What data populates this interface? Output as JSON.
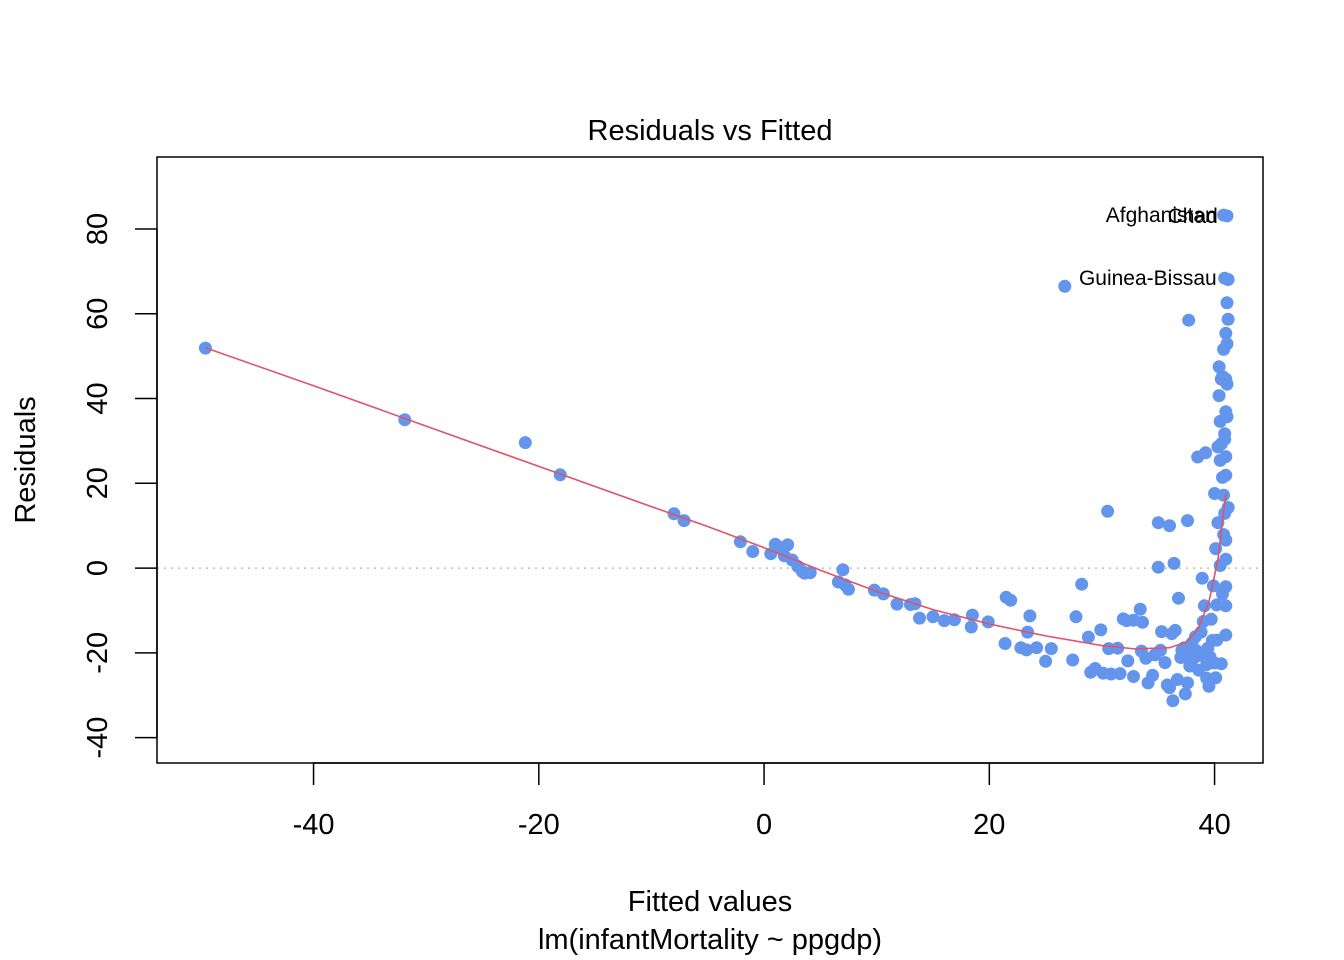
{
  "chart_data": {
    "type": "scatter",
    "title": "Residuals vs Fitted",
    "xlabel": "Fitted values",
    "subtitle": "lm(infantMortality ~ ppgdp)",
    "ylabel": "Residuals",
    "xlim": [
      -53.9,
      44.3
    ],
    "ylim": [
      -46.0,
      97.0
    ],
    "xticks": [
      -40,
      -20,
      0,
      20,
      40
    ],
    "yticks": [
      -40,
      -20,
      0,
      20,
      40,
      60,
      80
    ],
    "xtick_labels": [
      "-40",
      "-20",
      "0",
      "20",
      "40"
    ],
    "ytick_labels": [
      "-40",
      "-20",
      "0",
      "20",
      "40",
      "60",
      "80"
    ],
    "grid": false,
    "reference_line_y": 0,
    "colors": {
      "points": "#6495ED",
      "smooth": "#DF536B",
      "refline": "#BEBEBE",
      "axes": "#000000"
    },
    "annotations": [
      {
        "text": "Afghanistan",
        "x": 40.9,
        "y": 83.3
      },
      {
        "text": "Chad",
        "x": 41.0,
        "y": 83.1
      },
      {
        "text": "Guinea-Bissau",
        "x": 40.9,
        "y": 68.4
      }
    ],
    "smooth": [
      [
        -49.6,
        52.0
      ],
      [
        -40,
        43.0
      ],
      [
        -30,
        33.5
      ],
      [
        -20,
        24.0
      ],
      [
        -10,
        14.5
      ],
      [
        -5,
        9.8
      ],
      [
        0,
        4.8
      ],
      [
        5,
        -0.5
      ],
      [
        10,
        -5.5
      ],
      [
        15,
        -9.8
      ],
      [
        20,
        -13.2
      ],
      [
        25,
        -16.0
      ],
      [
        30,
        -18.3
      ],
      [
        33,
        -19.1
      ],
      [
        36,
        -18.8
      ],
      [
        37.5,
        -17.5
      ],
      [
        38.5,
        -14.5
      ],
      [
        39.5,
        -8.0
      ],
      [
        40.3,
        2.0
      ],
      [
        41.0,
        17.5
      ]
    ],
    "points": [
      [
        -49.6,
        51.9
      ],
      [
        -31.9,
        35.0
      ],
      [
        -21.2,
        29.6
      ],
      [
        -18.1,
        22.0
      ],
      [
        -8.0,
        12.8
      ],
      [
        -7.1,
        11.2
      ],
      [
        -2.1,
        6.2
      ],
      [
        -1.0,
        3.9
      ],
      [
        0.6,
        3.4
      ],
      [
        1.0,
        5.6
      ],
      [
        1.4,
        4.9
      ],
      [
        2.1,
        5.5
      ],
      [
        1.8,
        2.9
      ],
      [
        2.5,
        1.9
      ],
      [
        3.0,
        0.4
      ],
      [
        3.4,
        -0.8
      ],
      [
        3.6,
        -1.2
      ],
      [
        4.1,
        -1.1
      ],
      [
        6.6,
        -3.3
      ],
      [
        7.0,
        -0.4
      ],
      [
        7.2,
        -4.0
      ],
      [
        7.5,
        -5.0
      ],
      [
        9.8,
        -5.2
      ],
      [
        10.6,
        -6.1
      ],
      [
        11.8,
        -8.5
      ],
      [
        13.0,
        -8.6
      ],
      [
        13.4,
        -8.4
      ],
      [
        13.8,
        -11.8
      ],
      [
        15.0,
        -11.5
      ],
      [
        16.0,
        -12.4
      ],
      [
        16.9,
        -12.2
      ],
      [
        18.4,
        -13.9
      ],
      [
        18.5,
        -11.1
      ],
      [
        19.9,
        -12.7
      ],
      [
        21.4,
        -17.8
      ],
      [
        21.5,
        -6.9
      ],
      [
        21.9,
        -7.6
      ],
      [
        22.8,
        -18.8
      ],
      [
        23.3,
        -19.3
      ],
      [
        23.4,
        -15.1
      ],
      [
        23.6,
        -11.3
      ],
      [
        24.2,
        -18.8
      ],
      [
        25.0,
        -22.0
      ],
      [
        25.5,
        -19.0
      ],
      [
        26.7,
        66.5
      ],
      [
        27.4,
        -21.7
      ],
      [
        27.7,
        -11.5
      ],
      [
        28.2,
        -3.8
      ],
      [
        28.8,
        -16.3
      ],
      [
        29.0,
        -24.6
      ],
      [
        29.4,
        -23.7
      ],
      [
        29.9,
        -14.6
      ],
      [
        30.1,
        -24.8
      ],
      [
        30.5,
        13.4
      ],
      [
        30.8,
        -25.0
      ],
      [
        30.6,
        -19.0
      ],
      [
        31.4,
        -18.9
      ],
      [
        31.6,
        -24.9
      ],
      [
        31.9,
        -12.0
      ],
      [
        32.2,
        -12.4
      ],
      [
        32.3,
        -21.9
      ],
      [
        32.8,
        -25.6
      ],
      [
        32.8,
        -12.3
      ],
      [
        33.5,
        -19.6
      ],
      [
        33.4,
        -9.7
      ],
      [
        33.6,
        -12.8
      ],
      [
        33.9,
        -21.3
      ],
      [
        34.1,
        -27.1
      ],
      [
        34.5,
        -25.3
      ],
      [
        34.7,
        -20.5
      ],
      [
        35.0,
        0.2
      ],
      [
        35.0,
        10.7
      ],
      [
        35.2,
        -19.4
      ],
      [
        35.3,
        -15.0
      ],
      [
        35.6,
        -22.3
      ],
      [
        35.8,
        -27.6
      ],
      [
        36.0,
        10.0
      ],
      [
        36.0,
        -28.2
      ],
      [
        36.2,
        -15.5
      ],
      [
        36.3,
        -31.3
      ],
      [
        36.4,
        1.1
      ],
      [
        36.5,
        -14.7
      ],
      [
        36.7,
        -26.3
      ],
      [
        36.8,
        -7.1
      ],
      [
        37.0,
        -21.1
      ],
      [
        37.1,
        -19.4
      ],
      [
        37.3,
        -18.8
      ],
      [
        37.4,
        -29.7
      ],
      [
        37.6,
        -27.1
      ],
      [
        37.6,
        11.2
      ],
      [
        37.7,
        58.5
      ],
      [
        37.8,
        -23.1
      ],
      [
        37.9,
        -20.2
      ],
      [
        38.0,
        -17.7
      ],
      [
        38.1,
        -21.4
      ],
      [
        38.3,
        -16.2
      ],
      [
        38.4,
        -19.5
      ],
      [
        38.5,
        26.2
      ],
      [
        38.6,
        -24.1
      ],
      [
        38.7,
        -20.6
      ],
      [
        38.8,
        -15.1
      ],
      [
        38.9,
        -2.4
      ],
      [
        39.0,
        -12.6
      ],
      [
        39.1,
        -8.9
      ],
      [
        39.2,
        27.2
      ],
      [
        39.3,
        -26.0
      ],
      [
        39.3,
        -22.8
      ],
      [
        39.4,
        -18.9
      ],
      [
        39.5,
        -27.9
      ],
      [
        39.6,
        -21.0
      ],
      [
        39.7,
        -12.1
      ],
      [
        39.8,
        -17.1
      ],
      [
        39.9,
        -4.2
      ],
      [
        40.0,
        17.6
      ],
      [
        40.0,
        -22.4
      ],
      [
        40.1,
        4.6
      ],
      [
        40.1,
        -25.9
      ],
      [
        40.2,
        -17.0
      ],
      [
        40.2,
        -8.7
      ],
      [
        40.3,
        28.6
      ],
      [
        40.3,
        10.7
      ],
      [
        40.4,
        47.5
      ],
      [
        40.4,
        40.7
      ],
      [
        40.5,
        34.6
      ],
      [
        40.5,
        25.4
      ],
      [
        40.5,
        0.6
      ],
      [
        40.6,
        -22.6
      ],
      [
        40.6,
        44.6
      ],
      [
        40.6,
        29.3
      ],
      [
        40.7,
        -6.1
      ],
      [
        40.7,
        21.4
      ],
      [
        40.8,
        17.2
      ],
      [
        40.8,
        51.6
      ],
      [
        40.8,
        83.3
      ],
      [
        40.9,
        68.4
      ],
      [
        40.9,
        12.9
      ],
      [
        40.9,
        31.7
      ],
      [
        41.0,
        -15.8
      ],
      [
        41.0,
        36.9
      ],
      [
        41.0,
        44.6
      ],
      [
        41.0,
        55.4
      ],
      [
        41.0,
        26.3
      ],
      [
        41.0,
        21.9
      ],
      [
        41.0,
        -8.9
      ],
      [
        41.0,
        6.6
      ],
      [
        41.0,
        2.1
      ],
      [
        41.1,
        83.1
      ],
      [
        41.1,
        43.4
      ],
      [
        41.1,
        35.7
      ],
      [
        41.1,
        62.6
      ],
      [
        41.2,
        68.1
      ],
      [
        41.2,
        58.7
      ],
      [
        41.1,
        52.9
      ],
      [
        41.0,
        -4.4
      ],
      [
        41.2,
        14.3
      ],
      [
        40.9,
        30.4
      ],
      [
        40.7,
        45.2
      ],
      [
        40.8,
        7.9
      ]
    ]
  }
}
